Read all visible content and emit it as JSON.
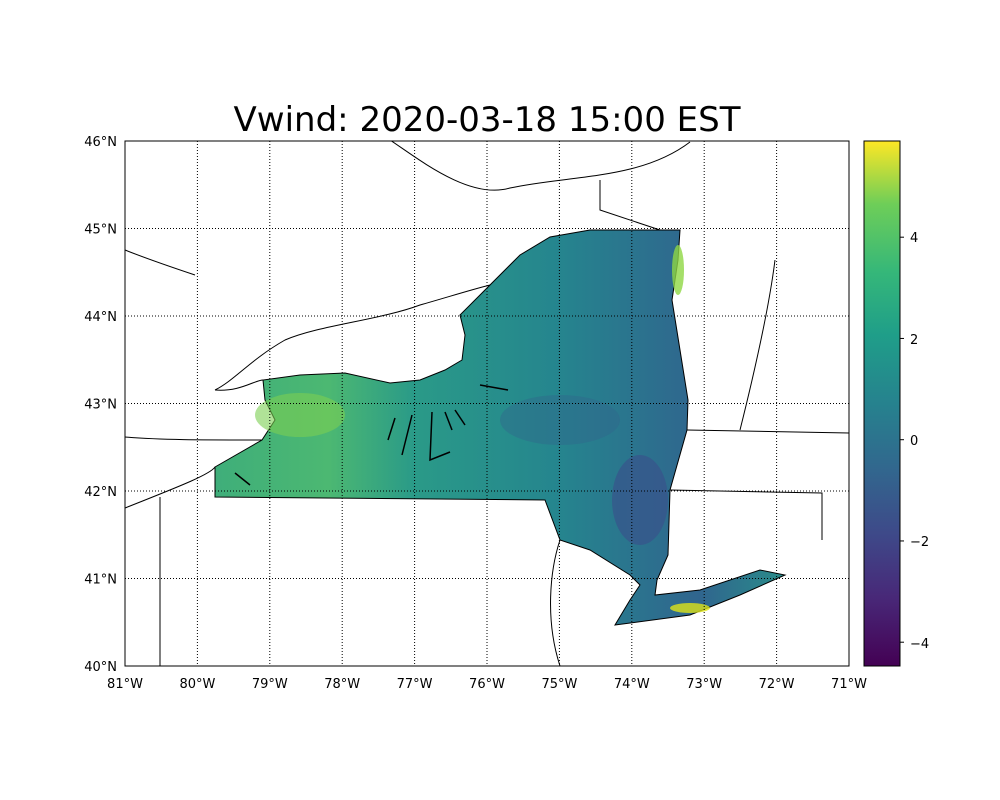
{
  "title": "Vwind: 2020-03-18 15:00 EST",
  "chart_data": {
    "type": "heatmap",
    "title": "Vwind: 2020-03-18 15:00 EST",
    "projection": "lat-lon map of New York State",
    "lon_range": [
      -81,
      -71
    ],
    "lat_range": [
      40,
      46
    ],
    "x_ticks": [
      "81°W",
      "80°W",
      "79°W",
      "78°W",
      "77°W",
      "76°W",
      "75°W",
      "74°W",
      "73°W",
      "72°W",
      "71°W"
    ],
    "y_ticks": [
      "40°N",
      "41°N",
      "42°N",
      "43°N",
      "44°N",
      "45°N",
      "46°N"
    ],
    "grid": true,
    "colormap": "viridis",
    "colorbar": {
      "ticks": [
        "−4",
        "−2",
        "0",
        "2",
        "4"
      ],
      "tick_values": [
        -4,
        -2,
        0,
        2,
        4
      ],
      "range": [
        -4.47,
        5.9
      ]
    },
    "colors": {
      "low": "#440154",
      "mid": "#21918c",
      "high": "#fde725"
    }
  }
}
